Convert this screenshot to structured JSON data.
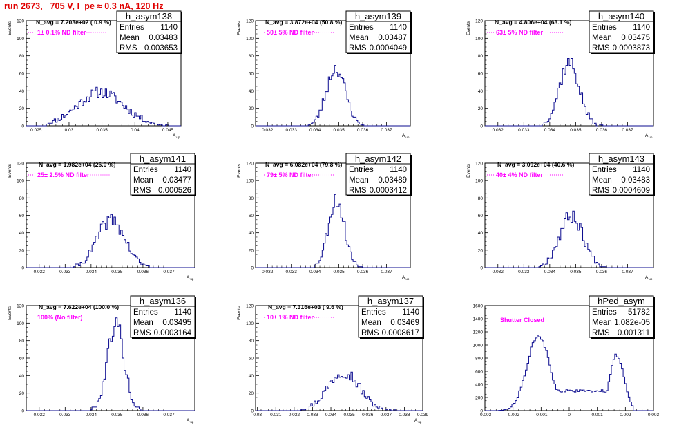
{
  "title": "run 2673,   705 V, I_pe ≈ 0.3 nA, 120 Hz",
  "chart_data": [
    {
      "type": "histogram",
      "name": "h_asym138",
      "stats": {
        "entries": "1140",
        "mean": "0.03483",
        "rms": "0.003653"
      },
      "stat_labels": {
        "entries": "Entries",
        "mean": "Mean",
        "rms": "RMS"
      },
      "n_avg": "N_avg = 7.203e+02 ( 0.9 %)",
      "filter": "1± 0.1% ND filter",
      "xlabel": "A",
      "xlabel_sub": "up",
      "ylabel": "Events",
      "xlim": [
        0.0235,
        0.047
      ],
      "ylim": [
        0,
        120
      ],
      "x_ticks": [
        0.025,
        0.03,
        0.035,
        0.04,
        0.045
      ],
      "x_tick_labels": [
        "0.025",
        "0.03",
        "0.035",
        "0.04",
        "0.045"
      ],
      "y_ticks": [
        0,
        20,
        40,
        60,
        80,
        100,
        120
      ],
      "y_tick_labels": [
        "0",
        "20",
        "40",
        "60",
        "80",
        "100",
        "120"
      ],
      "model": {
        "peaks": [
          {
            "mu": 0.0348,
            "sigma": 0.0036,
            "height": 38
          }
        ],
        "x0": 0.0265,
        "x1": 0.0455,
        "seed": 11
      }
    },
    {
      "type": "histogram",
      "name": "h_asym139",
      "stats": {
        "entries": "1140",
        "mean": "0.03487",
        "rms": "0.0004049"
      },
      "stat_labels": {
        "entries": "Entries",
        "mean": "Mean",
        "rms": "RMS"
      },
      "n_avg": "N_avg = 3.872e+04 (50.8 %)",
      "filter": "50± 5% ND filter",
      "xlabel": "A",
      "xlabel_sub": "up",
      "ylabel": "Events",
      "xlim": [
        0.0315,
        0.038
      ],
      "ylim": [
        0,
        120
      ],
      "x_ticks": [
        0.032,
        0.033,
        0.034,
        0.035,
        0.036,
        0.037
      ],
      "x_tick_labels": [
        "0.032",
        "0.033",
        "0.034",
        "0.035",
        "0.036",
        "0.037"
      ],
      "y_ticks": [
        0,
        20,
        40,
        60,
        80,
        100,
        120
      ],
      "y_tick_labels": [
        "0",
        "20",
        "40",
        "60",
        "80",
        "100",
        "120"
      ],
      "model": {
        "peaks": [
          {
            "mu": 0.03487,
            "sigma": 0.0004,
            "height": 66
          }
        ],
        "x0": 0.0337,
        "x1": 0.0362,
        "seed": 23
      }
    },
    {
      "type": "histogram",
      "name": "h_asym140",
      "stats": {
        "entries": "1140",
        "mean": "0.03475",
        "rms": "0.0003873"
      },
      "stat_labels": {
        "entries": "Entries",
        "mean": "Mean",
        "rms": "RMS"
      },
      "n_avg": "N_avg = 4.806e+04 (63.1 %)",
      "filter": "63± 5% ND filter",
      "xlabel": "A",
      "xlabel_sub": "up",
      "ylabel": "Events",
      "xlim": [
        0.0315,
        0.038
      ],
      "ylim": [
        0,
        120
      ],
      "x_ticks": [
        0.032,
        0.033,
        0.034,
        0.035,
        0.036,
        0.037
      ],
      "x_tick_labels": [
        "0.032",
        "0.033",
        "0.034",
        "0.035",
        "0.036",
        "0.037"
      ],
      "y_ticks": [
        0,
        20,
        40,
        60,
        80,
        100,
        120
      ],
      "y_tick_labels": [
        "0",
        "20",
        "40",
        "60",
        "80",
        "100",
        "120"
      ],
      "model": {
        "peaks": [
          {
            "mu": 0.03475,
            "sigma": 0.00039,
            "height": 72
          }
        ],
        "x0": 0.0337,
        "x1": 0.0362,
        "seed": 37
      }
    },
    {
      "type": "histogram",
      "name": "h_asym141",
      "stats": {
        "entries": "1140",
        "mean": "0.03477",
        "rms": "0.000526"
      },
      "stat_labels": {
        "entries": "Entries",
        "mean": "Mean",
        "rms": "RMS"
      },
      "n_avg": "N_avg = 1.982e+04 (26.0 %)",
      "filter": "25± 2.5% ND filter",
      "xlabel": "A",
      "xlabel_sub": "up",
      "ylabel": "Events",
      "xlim": [
        0.0315,
        0.038
      ],
      "ylim": [
        0,
        120
      ],
      "x_ticks": [
        0.032,
        0.033,
        0.034,
        0.035,
        0.036,
        0.037
      ],
      "x_tick_labels": [
        "0.032",
        "0.033",
        "0.034",
        "0.035",
        "0.036",
        "0.037"
      ],
      "y_ticks": [
        0,
        20,
        40,
        60,
        80,
        100,
        120
      ],
      "y_tick_labels": [
        "0",
        "20",
        "40",
        "60",
        "80",
        "100",
        "120"
      ],
      "model": {
        "peaks": [
          {
            "mu": 0.03477,
            "sigma": 0.00053,
            "height": 55
          }
        ],
        "x0": 0.0333,
        "x1": 0.0364,
        "seed": 41
      }
    },
    {
      "type": "histogram",
      "name": "h_asym142",
      "stats": {
        "entries": "1140",
        "mean": "0.03489",
        "rms": "0.0003412"
      },
      "stat_labels": {
        "entries": "Entries",
        "mean": "Mean",
        "rms": "RMS"
      },
      "n_avg": "N_avg = 6.082e+04 (79.8 %)",
      "filter": "79± 5% ND filter",
      "xlabel": "A",
      "xlabel_sub": "up",
      "ylabel": "Events",
      "xlim": [
        0.0315,
        0.038
      ],
      "ylim": [
        0,
        120
      ],
      "x_ticks": [
        0.032,
        0.033,
        0.034,
        0.035,
        0.036,
        0.037
      ],
      "x_tick_labels": [
        "0.032",
        "0.033",
        "0.034",
        "0.035",
        "0.036",
        "0.037"
      ],
      "y_ticks": [
        0,
        20,
        40,
        60,
        80,
        100,
        120
      ],
      "y_tick_labels": [
        "0",
        "20",
        "40",
        "60",
        "80",
        "100",
        "120"
      ],
      "model": {
        "peaks": [
          {
            "mu": 0.03489,
            "sigma": 0.00034,
            "height": 78
          }
        ],
        "x0": 0.0338,
        "x1": 0.0361,
        "seed": 53
      }
    },
    {
      "type": "histogram",
      "name": "h_asym143",
      "stats": {
        "entries": "1140",
        "mean": "0.03483",
        "rms": "0.0004609"
      },
      "stat_labels": {
        "entries": "Entries",
        "mean": "Mean",
        "rms": "RMS"
      },
      "n_avg": "N_avg = 3.092e+04 (40.6 %)",
      "filter": "40± 4% ND filter",
      "xlabel": "A",
      "xlabel_sub": "up",
      "ylabel": "Events",
      "xlim": [
        0.0315,
        0.038
      ],
      "ylim": [
        0,
        120
      ],
      "x_ticks": [
        0.032,
        0.033,
        0.034,
        0.035,
        0.036,
        0.037
      ],
      "x_tick_labels": [
        "0.032",
        "0.033",
        "0.034",
        "0.035",
        "0.036",
        "0.037"
      ],
      "y_ticks": [
        0,
        20,
        40,
        60,
        80,
        100,
        120
      ],
      "y_tick_labels": [
        "0",
        "20",
        "40",
        "60",
        "80",
        "100",
        "120"
      ],
      "model": {
        "peaks": [
          {
            "mu": 0.03483,
            "sigma": 0.00046,
            "height": 60
          }
        ],
        "x0": 0.0336,
        "x1": 0.0362,
        "seed": 67
      }
    },
    {
      "type": "histogram",
      "name": "h_asym136",
      "stats": {
        "entries": "1140",
        "mean": "0.03495",
        "rms": "0.0003164"
      },
      "stat_labels": {
        "entries": "Entries",
        "mean": "Mean",
        "rms": "RMS"
      },
      "n_avg": "N_avg = 7.622e+04 (100.0 %)",
      "filter": "100% (No filter)",
      "xlabel": "A",
      "xlabel_sub": "up",
      "ylabel": "Events",
      "xlim": [
        0.0315,
        0.038
      ],
      "ylim": [
        0,
        120
      ],
      "x_ticks": [
        0.032,
        0.033,
        0.034,
        0.035,
        0.036,
        0.037
      ],
      "x_tick_labels": [
        "0.032",
        "0.033",
        "0.034",
        "0.035",
        "0.036",
        "0.037"
      ],
      "y_ticks": [
        0,
        20,
        40,
        60,
        80,
        100,
        120
      ],
      "y_tick_labels": [
        "0",
        "20",
        "40",
        "60",
        "80",
        "100",
        "120"
      ],
      "model": {
        "peaks": [
          {
            "mu": 0.03495,
            "sigma": 0.00032,
            "height": 100
          }
        ],
        "x0": 0.0339,
        "x1": 0.036,
        "seed": 79
      }
    },
    {
      "type": "histogram",
      "name": "h_asym137",
      "stats": {
        "entries": "1140",
        "mean": "0.03469",
        "rms": "0.0008617"
      },
      "stat_labels": {
        "entries": "Entries",
        "mean": "Mean",
        "rms": "RMS"
      },
      "n_avg": "N_avg = 7.316e+03 ( 9.6 %)",
      "filter": "10± 1% ND filter",
      "xlabel": "A",
      "xlabel_sub": "up",
      "ylabel": "Events",
      "xlim": [
        0.0299,
        0.039
      ],
      "ylim": [
        0,
        120
      ],
      "x_ticks": [
        0.03,
        0.031,
        0.032,
        0.033,
        0.034,
        0.035,
        0.036,
        0.037,
        0.038,
        0.039
      ],
      "x_tick_labels": [
        "0.03",
        "0.031",
        "0.032",
        "0.033",
        "0.034",
        "0.035",
        "0.036",
        "0.037",
        "0.038",
        "0.039"
      ],
      "y_ticks": [
        0,
        20,
        40,
        60,
        80,
        100,
        120
      ],
      "y_tick_labels": [
        "0",
        "20",
        "40",
        "60",
        "80",
        "100",
        "120"
      ],
      "model": {
        "peaks": [
          {
            "mu": 0.03469,
            "sigma": 0.00086,
            "height": 45
          }
        ],
        "x0": 0.0322,
        "x1": 0.0375,
        "seed": 97
      }
    },
    {
      "type": "histogram",
      "name": "hPed_asym",
      "stats": {
        "entries": "51782",
        "mean": "1.082e-05",
        "rms": "0.001311"
      },
      "stat_labels": {
        "entries": "Entries",
        "mean": "Mean",
        "rms": "RMS"
      },
      "n_avg": "",
      "filter": "Shutter Closed",
      "xlabel": "",
      "xlabel_sub": "",
      "ylabel": "",
      "xlim": [
        -0.003,
        0.003
      ],
      "ylim": [
        0,
        1600
      ],
      "x_ticks": [
        -0.003,
        -0.002,
        -0.001,
        0,
        0.001,
        0.002,
        0.003
      ],
      "x_tick_labels": [
        "-0.003",
        "-0.002",
        "-0.001",
        "0",
        "0.001",
        "0.002",
        "0.003"
      ],
      "y_ticks": [
        0,
        200,
        400,
        600,
        800,
        1000,
        1200,
        1400,
        1600
      ],
      "y_tick_labels": [
        "0",
        "200",
        "400",
        "600",
        "800",
        "1000",
        "1200",
        "1400",
        "1600"
      ],
      "model": {
        "peaks": [
          {
            "mu": -0.0011,
            "sigma": 0.0004,
            "height": 1150
          },
          {
            "mu": 0.0017,
            "sigma": 0.00025,
            "height": 850
          }
        ],
        "baseline": 300,
        "x0": -0.0025,
        "x1": 0.0023,
        "seed": 113
      }
    }
  ]
}
